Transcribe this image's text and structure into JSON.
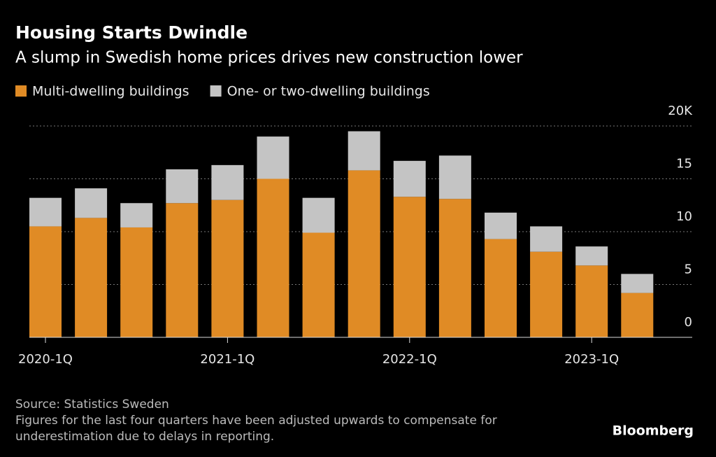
{
  "chart_data": {
    "type": "stacked_bar",
    "title": "Housing Starts Dwindle",
    "subtitle": "A slump in Swedish home prices drives new construction lower",
    "categories": [
      "2020-1Q",
      null,
      null,
      null,
      "2021-1Q",
      null,
      null,
      null,
      "2022-1Q",
      null,
      null,
      null,
      "2023-1Q",
      null
    ],
    "series": [
      {
        "name": "Multi-dwelling buildings",
        "color": "#e08b25",
        "values": [
          10.5,
          11.3,
          10.4,
          12.7,
          13.0,
          15.0,
          9.9,
          15.8,
          13.3,
          13.1,
          9.3,
          8.1,
          6.8,
          4.2
        ]
      },
      {
        "name": "One- or two-dwelling buildings",
        "color": "#c4c4c4",
        "values": [
          2.7,
          2.8,
          2.3,
          3.2,
          3.3,
          4.0,
          3.3,
          3.7,
          3.4,
          4.1,
          2.5,
          2.4,
          1.8,
          1.8
        ]
      }
    ],
    "ylim": [
      0,
      20
    ],
    "yticks": [
      0,
      5,
      10,
      15,
      {
        "value": 20,
        "label": "20K"
      }
    ],
    "grid": true,
    "source": "Source: Statistics Sweden",
    "note": [
      "Figures for the last four quarters have been adjusted upwards to compensate for",
      "underestimation due to delays in reporting."
    ],
    "brand": "Bloomberg"
  }
}
